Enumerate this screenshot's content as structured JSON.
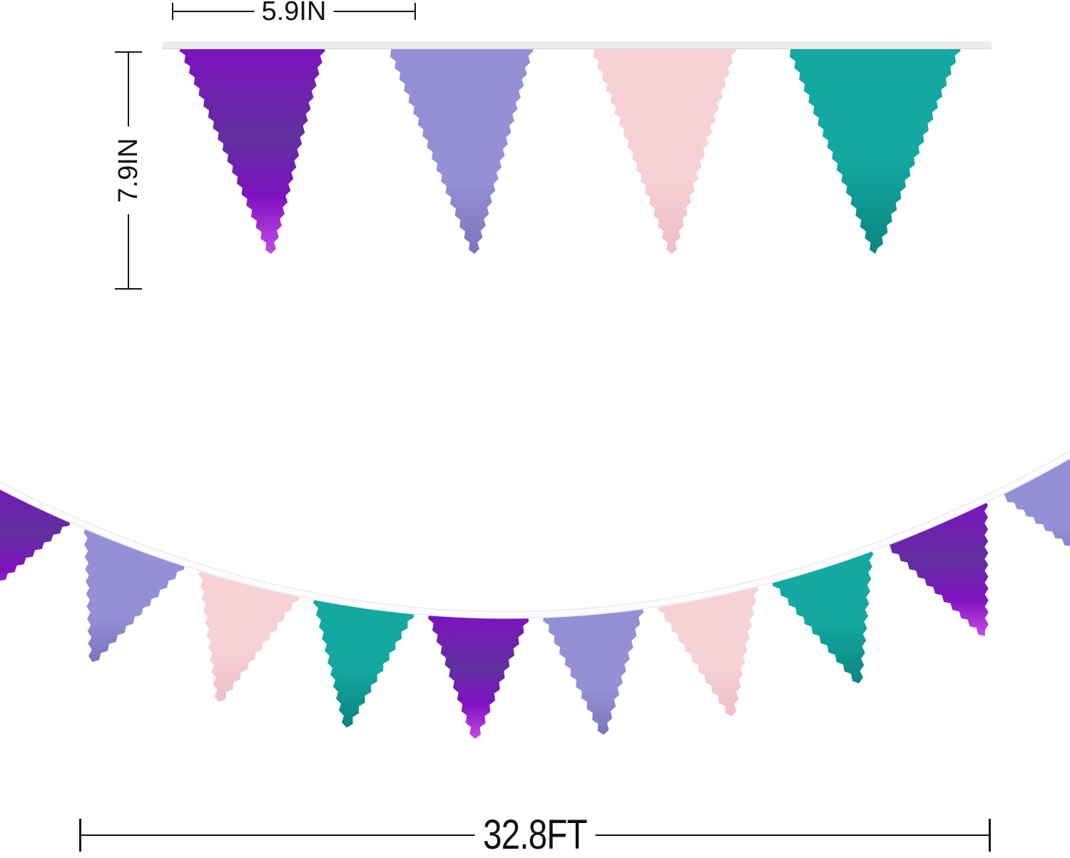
{
  "image_type": "pennant-banner-size-diagram",
  "dimensions": {
    "flag_width_label": "5.9IN",
    "flag_height_label": "7.9IN",
    "banner_length_label": "32.8FT"
  },
  "colors": {
    "annotation": "#141414",
    "background": "#FFFFFF",
    "ribbon": "#ECECEE",
    "ribbon_edge": "#DCDCE0",
    "string_outer": "#EFEFF1",
    "string_inner": "#FCFCFD",
    "purple": "#7D11C0",
    "purple_dark": "#61309E",
    "purple_glitter": "#C44BE4",
    "lavender": "#968FD6",
    "lavender_dark": "#7C74BC",
    "pink": "#F6D2D6",
    "pink_dark": "#EEBEC7",
    "teal": "#13A8A1",
    "teal_dark": "#0B847F"
  },
  "top_row": {
    "flag_colors": [
      "purple",
      "lavender",
      "pink",
      "teal"
    ]
  },
  "swag_row": {
    "flag_colors": [
      "purple",
      "lavender",
      "pink",
      "teal",
      "purple",
      "lavender",
      "pink",
      "teal",
      "purple",
      "lavender"
    ]
  }
}
